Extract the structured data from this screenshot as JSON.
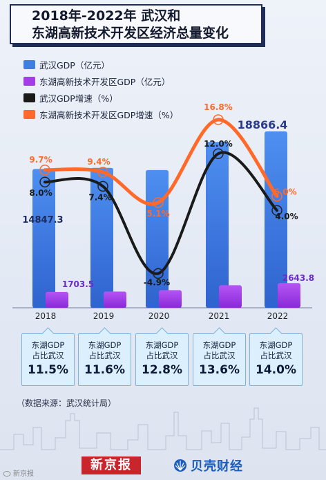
{
  "title": {
    "line1": "2018年-2022年 武汉和",
    "line2": "东湖高新技术开发区经济总量变化"
  },
  "legend": [
    {
      "label": "武汉GDP（亿元）",
      "color": "#3f7fe2"
    },
    {
      "label": "东湖高新技术开发区GDP（亿元）",
      "color": "#a43ce8"
    },
    {
      "label": "武汉GDP增速（%）",
      "color": "#1a1a1a"
    },
    {
      "label": "东湖高新技术开发区GDP增速（%）",
      "color": "#ff6a2b"
    }
  ],
  "chart_data": {
    "type": "bar",
    "categories": [
      "2018",
      "2019",
      "2020",
      "2021",
      "2022"
    ],
    "series": [
      {
        "name": "武汉GDP（亿元）",
        "kind": "bar",
        "values": [
          14847.3,
          14960,
          14730,
          17740,
          18866.4
        ],
        "color": "#3f7fe2"
      },
      {
        "name": "东湖高新技术开发区GDP（亿元）",
        "kind": "bar",
        "values": [
          1703.5,
          1740,
          1890,
          2410,
          2643.8
        ],
        "color": "#a43ce8"
      },
      {
        "name": "武汉GDP增速（%）",
        "kind": "line",
        "values": [
          8.0,
          7.4,
          -4.9,
          12.0,
          4.0
        ],
        "color": "#1a1a1a"
      },
      {
        "name": "东湖高新技术开发区GDP增速（%）",
        "kind": "line",
        "values": [
          9.7,
          9.4,
          5.1,
          16.8,
          6.0
        ],
        "color": "#ff6a2b"
      }
    ],
    "value_labels": {
      "wuhan_gdp": [
        "14847.3",
        "",
        "",
        "",
        "18866.4"
      ],
      "donghu_gdp": [
        "1703.5",
        "",
        "",
        "",
        "2643.8"
      ],
      "wuhan_growth": [
        "8.0%",
        "7.4%",
        "-4.9%",
        "12.0%",
        "4.0%"
      ],
      "donghu_growth": [
        "9.7%",
        "9.4%",
        "5.1%",
        "16.8%",
        "6.0%"
      ]
    }
  },
  "share_cards": [
    {
      "label": "东湖GDP\n占比武汉",
      "value": "11.5%"
    },
    {
      "label": "东湖GDP\n占比武汉",
      "value": "11.6%"
    },
    {
      "label": "东湖GDP\n占比武汉",
      "value": "12.8%"
    },
    {
      "label": "东湖GDP\n占比武汉",
      "value": "13.6%"
    },
    {
      "label": "东湖GDP\n占比武汉",
      "value": "14.0%"
    }
  ],
  "source": "（数据来源：武汉统计局）",
  "brands": {
    "xinjingbao": "新京报",
    "beike": "贝壳财经"
  },
  "watermark": "新京报"
}
